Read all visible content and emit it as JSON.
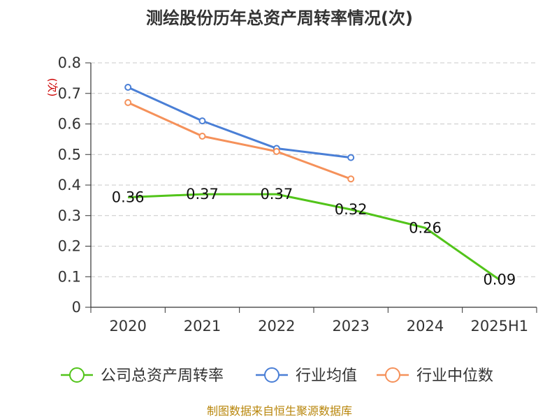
{
  "chart_data": {
    "type": "line",
    "title": "测绘股份历年总资产周转率情况(次)",
    "ylabel": "(次)",
    "categories": [
      "2020",
      "2021",
      "2022",
      "2023",
      "2024",
      "2025H1"
    ],
    "ylim": [
      0,
      0.8
    ],
    "yticks": [
      "0",
      "0.1",
      "0.2",
      "0.3",
      "0.4",
      "0.5",
      "0.6",
      "0.7",
      "0.8"
    ],
    "grid": true,
    "legend_position": "bottom",
    "series": [
      {
        "name": "公司总资产周转率",
        "color": "#52c41a",
        "values": [
          0.36,
          0.37,
          0.37,
          0.32,
          0.26,
          0.09
        ],
        "labels": [
          "0.36",
          "0.37",
          "0.37",
          "0.32",
          "0.26",
          "0.09"
        ]
      },
      {
        "name": "行业均值",
        "color": "#4a7fd6",
        "values": [
          0.72,
          0.61,
          0.52,
          0.49,
          null,
          null
        ]
      },
      {
        "name": "行业中位数",
        "color": "#f5915a",
        "values": [
          0.67,
          0.56,
          0.51,
          0.42,
          null,
          null
        ]
      }
    ],
    "source": "制图数据来自恒生聚源数据库"
  }
}
